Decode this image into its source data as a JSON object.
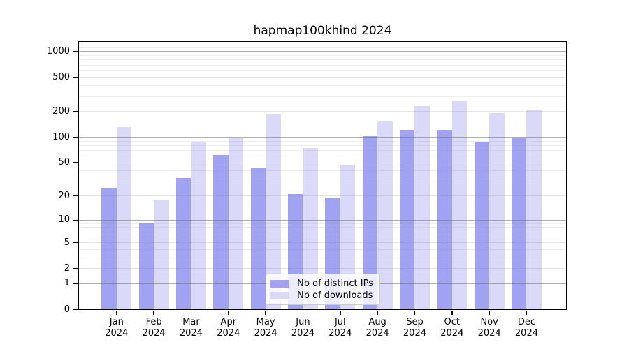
{
  "title": "hapmap100khind 2024",
  "chart_data": {
    "type": "bar",
    "title": "hapmap100khind 2024",
    "categories": [
      "Jan 2024",
      "Feb 2024",
      "Mar 2024",
      "Apr 2024",
      "May 2024",
      "Jun 2024",
      "Jul 2024",
      "Aug 2024",
      "Sep 2024",
      "Oct 2024",
      "Nov 2024",
      "Dec 2024"
    ],
    "series": [
      {
        "name": "Nb of distinct IPs",
        "color": "#a2a2f2",
        "values": [
          25,
          9,
          33,
          62,
          44,
          21,
          19,
          104,
          122,
          122,
          87,
          99
        ]
      },
      {
        "name": "Nb of downloads",
        "color": "#dadaf8",
        "values": [
          131,
          18,
          89,
          98,
          186,
          75,
          47,
          152,
          232,
          272,
          193,
          212
        ]
      }
    ],
    "xlabel": "",
    "ylabel": "",
    "yscale": "log1p",
    "ylim": [
      0,
      1300
    ],
    "yticks": [
      0,
      1,
      2,
      5,
      10,
      20,
      50,
      100,
      200,
      500,
      1000
    ],
    "decade_ticks": [
      1,
      10,
      100,
      1000
    ],
    "minor_gridlines": [
      3,
      4,
      6,
      7,
      8,
      9,
      30,
      40,
      60,
      70,
      80,
      90,
      300,
      400,
      600,
      700,
      800,
      900,
      1100,
      1200
    ],
    "grid": true,
    "legend_position": "lower center",
    "bar_colors": {
      "distinct_ips": "#a2a2f2",
      "downloads": "#dadaf8"
    }
  }
}
